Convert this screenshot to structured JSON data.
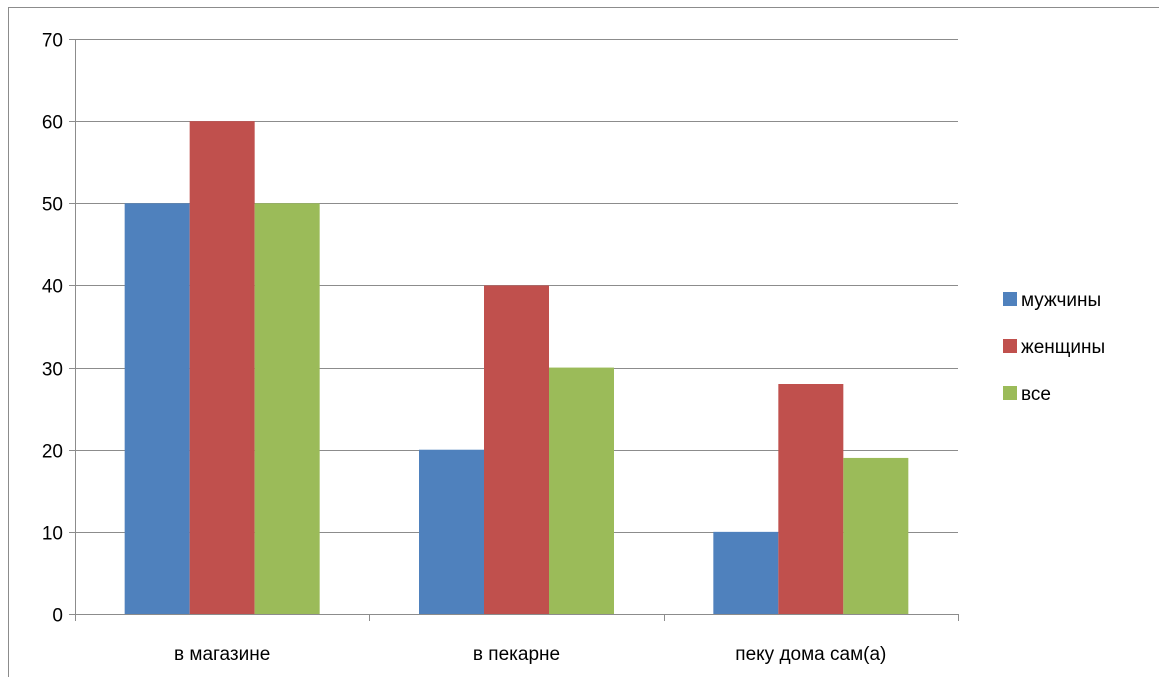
{
  "chart_data": {
    "type": "bar",
    "categories": [
      "в магазине",
      "в пекарне",
      "пеку дома сам(а)"
    ],
    "series": [
      {
        "name": "мужчины",
        "values": [
          50,
          20,
          10
        ],
        "color": "#4F81BD"
      },
      {
        "name": "женщины",
        "values": [
          60,
          40,
          28
        ],
        "color": "#C0504D"
      },
      {
        "name": "все",
        "values": [
          50,
          30,
          19
        ],
        "color": "#9BBB59"
      }
    ],
    "ylim": [
      0,
      70
    ],
    "yticks": [
      0,
      10,
      20,
      30,
      40,
      50,
      60,
      70
    ],
    "grid": true,
    "legend": "right",
    "title": "",
    "xlabel": "",
    "ylabel": ""
  }
}
